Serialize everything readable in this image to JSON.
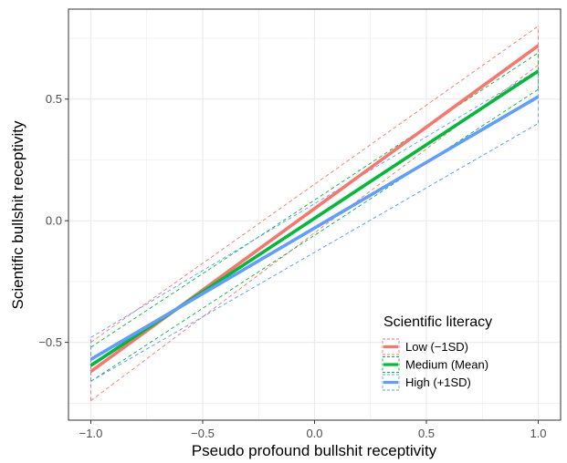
{
  "chart_data": {
    "type": "line",
    "title": "",
    "xlabel": "Pseudo profound bullshit receptivity",
    "ylabel": "Scientific bullshit receptivity",
    "xlim": [
      -1.1,
      1.1
    ],
    "ylim": [
      -0.82,
      0.87
    ],
    "x_ticks": [
      -1.0,
      -0.5,
      0.0,
      0.5,
      1.0
    ],
    "x_tick_labels": [
      "−1.0",
      "−0.5",
      "0.0",
      "0.5",
      "1.0"
    ],
    "y_ticks": [
      -0.5,
      0.0,
      0.5
    ],
    "y_tick_labels": [
      "−0.5",
      "0.0",
      "0.5"
    ],
    "grid": true,
    "legend": {
      "title": "Scientific literacy",
      "position": "bottom-right"
    },
    "series": [
      {
        "name": "Low (−1SD)",
        "color": "#F8766D",
        "x": [
          -1.0,
          1.0
        ],
        "values": [
          -0.62,
          0.72
        ],
        "ci_lower": [
          -0.74,
          0.64
        ],
        "ci_upper": [
          -0.5,
          0.8
        ]
      },
      {
        "name": "Medium (Mean)",
        "color": "#00BA38",
        "x": [
          -1.0,
          1.0
        ],
        "values": [
          -0.595,
          0.615
        ],
        "ci_lower": [
          -0.66,
          0.54
        ],
        "ci_upper": [
          -0.52,
          0.69
        ]
      },
      {
        "name": "High (+1SD)",
        "color": "#619CFF",
        "x": [
          -1.0,
          1.0
        ],
        "values": [
          -0.57,
          0.51
        ],
        "ci_lower": [
          -0.66,
          0.4
        ],
        "ci_upper": [
          -0.48,
          0.62
        ]
      }
    ]
  }
}
